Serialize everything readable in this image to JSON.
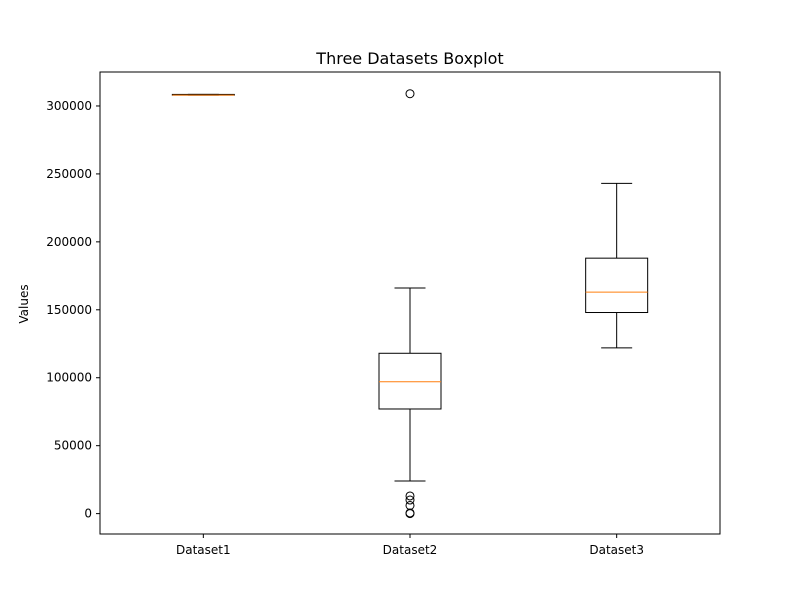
{
  "chart_data": {
    "type": "boxplot",
    "title": "Three Datasets Boxplot",
    "xlabel": "",
    "ylabel": "Values",
    "ylim": [
      -15000,
      325000
    ],
    "yticks": [
      0,
      50000,
      100000,
      150000,
      200000,
      250000,
      300000
    ],
    "ytick_labels": [
      "0",
      "50000",
      "100000",
      "150000",
      "200000",
      "250000",
      "300000"
    ],
    "grid": false,
    "categories": [
      "Dataset1",
      "Dataset2",
      "Dataset3"
    ],
    "boxes": [
      {
        "category": "Dataset1",
        "whisker_low": 308000,
        "q1": 308000,
        "median": 308000,
        "q3": 308500,
        "whisker_high": 308500,
        "outliers": []
      },
      {
        "category": "Dataset2",
        "whisker_low": 24000,
        "q1": 77000,
        "median": 97000,
        "q3": 118000,
        "whisker_high": 166000,
        "outliers": [
          0,
          500,
          6000,
          10000,
          13000,
          309000
        ]
      },
      {
        "category": "Dataset3",
        "whisker_low": 122000,
        "q1": 148000,
        "median": 163000,
        "q3": 188000,
        "whisker_high": 243000,
        "outliers": []
      }
    ],
    "colors": {
      "box": "#000000",
      "median": "#ff7f0e",
      "outlier": "#000000"
    }
  }
}
